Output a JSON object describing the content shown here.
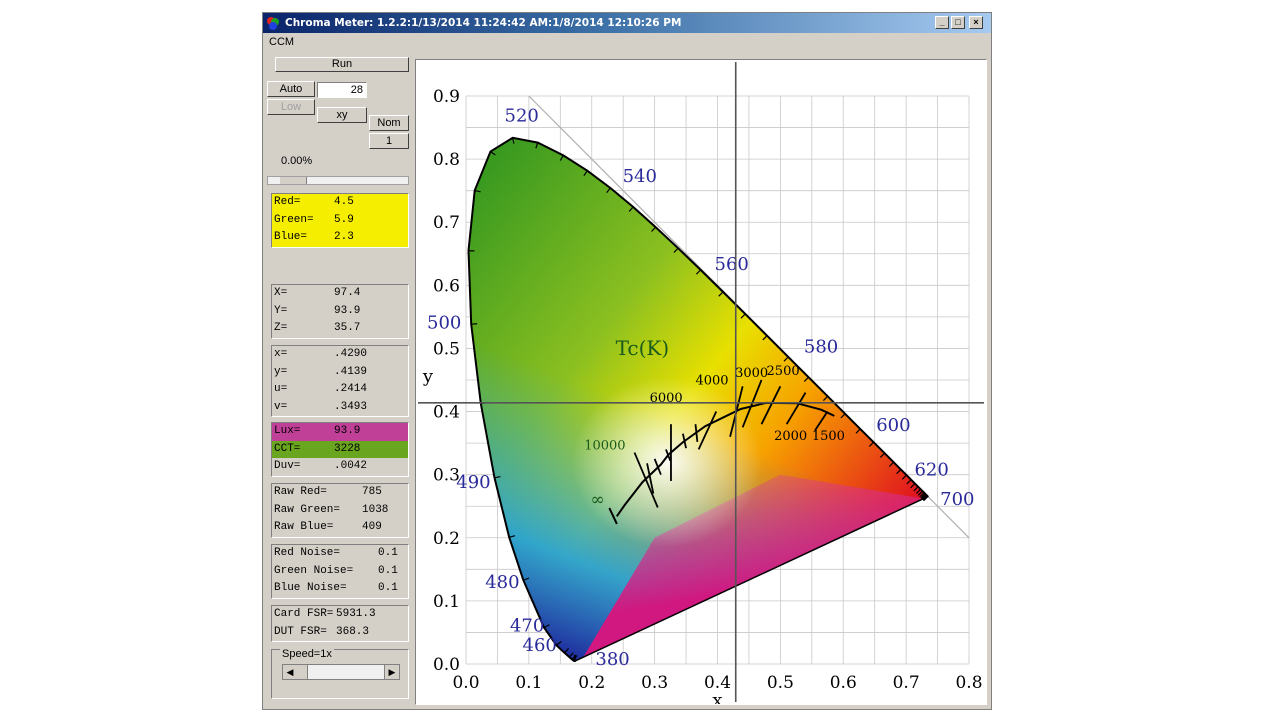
{
  "window": {
    "title": "Chroma Meter: 1.2.2:1/13/2014 11:24:42 AM:1/8/2014 12:10:26 PM",
    "controls": [
      "_",
      "□",
      "×"
    ]
  },
  "menu": {
    "items": [
      "CCM"
    ]
  },
  "controls": {
    "run_label": "Run",
    "auto_label": "Auto",
    "auto_value": "28",
    "low_label": "Low",
    "xy_label": "xy",
    "nom_label": "Nom",
    "nom_value": "1",
    "percent": "0.00%",
    "speed_label": "Speed=1x"
  },
  "readouts": {
    "rgb": [
      {
        "label": "Red=",
        "value": "4.5"
      },
      {
        "label": "Green=",
        "value": "5.9"
      },
      {
        "label": "Blue=",
        "value": "2.3"
      }
    ],
    "xyz": [
      {
        "label": "X=",
        "value": "97.4"
      },
      {
        "label": "Y=",
        "value": "93.9"
      },
      {
        "label": "Z=",
        "value": "35.7"
      }
    ],
    "chroma": [
      {
        "label": "x=",
        "value": ".4290"
      },
      {
        "label": "y=",
        "value": ".4139"
      },
      {
        "label": "u=",
        "value": ".2414"
      },
      {
        "label": "v=",
        "value": ".3493"
      }
    ],
    "lux": {
      "label": "Lux=",
      "value": "93.9"
    },
    "cct": {
      "label": "CCT=",
      "value": "3228"
    },
    "duv": {
      "label": "Duv=",
      "value": ".0042"
    },
    "raw": [
      {
        "label": "Raw Red=",
        "value": "785"
      },
      {
        "label": "Raw Green=",
        "value": "1038"
      },
      {
        "label": "Raw Blue=",
        "value": "409"
      }
    ],
    "noise": [
      {
        "label": "Red Noise=",
        "value": "0.1"
      },
      {
        "label": "Green Noise=",
        "value": "0.1"
      },
      {
        "label": "Blue Noise=",
        "value": "0.1"
      }
    ],
    "fsr": [
      {
        "label": "Card FSR=",
        "value": "5931.3"
      },
      {
        "label": "DUT FSR=",
        "value": "368.3"
      }
    ]
  },
  "chart_data": {
    "type": "scatter",
    "xlabel": "x",
    "ylabel": "y",
    "xlim": [
      0,
      0.8
    ],
    "ylim": [
      0,
      0.9
    ],
    "xticks": [
      "0.0",
      "0.1",
      "0.2",
      "0.3",
      "0.4",
      "0.5",
      "0.6",
      "0.7",
      "0.8"
    ],
    "yticks": [
      "0.0",
      "0.1",
      "0.2",
      "0.3",
      "0.4",
      "0.5",
      "0.6",
      "0.7",
      "0.8",
      "0.9"
    ],
    "grid": true,
    "crosshair": {
      "x": 0.429,
      "y": 0.4139
    },
    "locus_labels": [
      {
        "text": "380",
        "x": 0.174,
        "y": 0.005
      },
      {
        "text": "460",
        "x": 0.144,
        "y": 0.03
      },
      {
        "text": "470",
        "x": 0.124,
        "y": 0.058
      },
      {
        "text": "480",
        "x": 0.091,
        "y": 0.133
      },
      {
        "text": "490",
        "x": 0.045,
        "y": 0.295
      },
      {
        "text": "500",
        "x": 0.008,
        "y": 0.538
      },
      {
        "text": "520",
        "x": 0.074,
        "y": 0.834
      },
      {
        "text": "540",
        "x": 0.23,
        "y": 0.754
      },
      {
        "text": "560",
        "x": 0.373,
        "y": 0.624
      },
      {
        "text": "580",
        "x": 0.512,
        "y": 0.487
      },
      {
        "text": "600",
        "x": 0.627,
        "y": 0.372
      },
      {
        "text": "620",
        "x": 0.691,
        "y": 0.308
      },
      {
        "text": "700",
        "x": 0.735,
        "y": 0.265
      }
    ],
    "planckian_label": "Tc(K)",
    "planckian_temps": [
      "10000",
      "6000",
      "4000",
      "3000",
      "2500",
      "2000",
      "1500",
      "∞"
    ],
    "colors": {
      "grid": "#c8c8c8",
      "locus": "#000000",
      "label": "#2a2a9a",
      "planck": "#1a5a1a"
    }
  }
}
